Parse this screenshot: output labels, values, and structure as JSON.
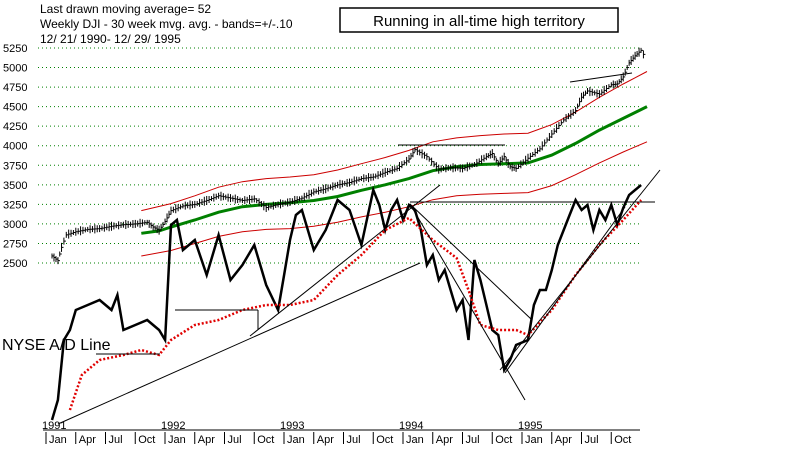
{
  "chart_data": {
    "type": "line",
    "header": [
      "Last drawn moving average= 52",
      "Weekly DJI - 30 week mvg. avg. - bands=+/-.10",
      "12/ 21/ 1990- 12/ 29/ 1995"
    ],
    "annotation": "Running in all-time high territory",
    "ad_line_label": "NYSE A/D Line",
    "y_ticks": [
      2500,
      2750,
      3000,
      3250,
      3500,
      3750,
      4000,
      4250,
      4500,
      4750,
      5000,
      5250
    ],
    "ylim": [
      2500,
      5250
    ],
    "grid": "horizontal dotted",
    "year_labels": [
      "1991",
      "1992",
      "1993",
      "1994",
      "1995"
    ],
    "month_labels": [
      "Jan",
      "Apr",
      "Jul",
      "Oct",
      "Jan",
      "Apr",
      "Jul",
      "Oct",
      "Jan",
      "Apr",
      "Jul",
      "Oct",
      "Jan",
      "Apr",
      "Jul",
      "Oct",
      "Jan",
      "Apr",
      "Jul",
      "Oct"
    ],
    "dji_weekly": [
      [
        1991.0,
        2590
      ],
      [
        1991.05,
        2530
      ],
      [
        1991.08,
        2700
      ],
      [
        1991.12,
        2860
      ],
      [
        1991.2,
        2900
      ],
      [
        1991.3,
        2930
      ],
      [
        1991.4,
        2940
      ],
      [
        1991.5,
        2970
      ],
      [
        1991.6,
        2990
      ],
      [
        1991.7,
        3000
      ],
      [
        1991.8,
        3020
      ],
      [
        1991.85,
        2960
      ],
      [
        1991.9,
        2920
      ],
      [
        1991.95,
        3030
      ],
      [
        1992.0,
        3170
      ],
      [
        1992.1,
        3230
      ],
      [
        1992.2,
        3250
      ],
      [
        1992.3,
        3300
      ],
      [
        1992.4,
        3360
      ],
      [
        1992.5,
        3330
      ],
      [
        1992.6,
        3300
      ],
      [
        1992.7,
        3320
      ],
      [
        1992.8,
        3210
      ],
      [
        1992.9,
        3250
      ],
      [
        1993.0,
        3280
      ],
      [
        1993.1,
        3330
      ],
      [
        1993.2,
        3410
      ],
      [
        1993.3,
        3450
      ],
      [
        1993.4,
        3500
      ],
      [
        1993.5,
        3530
      ],
      [
        1993.6,
        3580
      ],
      [
        1993.7,
        3600
      ],
      [
        1993.8,
        3660
      ],
      [
        1993.9,
        3710
      ],
      [
        1994.0,
        3830
      ],
      [
        1994.05,
        3950
      ],
      [
        1994.15,
        3860
      ],
      [
        1994.25,
        3700
      ],
      [
        1994.35,
        3720
      ],
      [
        1994.45,
        3710
      ],
      [
        1994.55,
        3760
      ],
      [
        1994.65,
        3860
      ],
      [
        1994.7,
        3900
      ],
      [
        1994.75,
        3770
      ],
      [
        1994.8,
        3860
      ],
      [
        1994.85,
        3730
      ],
      [
        1994.9,
        3710
      ],
      [
        1995.0,
        3840
      ],
      [
        1995.1,
        3960
      ],
      [
        1995.2,
        4150
      ],
      [
        1995.3,
        4330
      ],
      [
        1995.4,
        4450
      ],
      [
        1995.45,
        4620
      ],
      [
        1995.5,
        4700
      ],
      [
        1995.6,
        4660
      ],
      [
        1995.7,
        4780
      ],
      [
        1995.75,
        4790
      ],
      [
        1995.8,
        4880
      ],
      [
        1995.85,
        5060
      ],
      [
        1995.9,
        5150
      ],
      [
        1995.95,
        5220
      ],
      [
        1995.99,
        5117
      ]
    ],
    "ma_30wk": [
      [
        1991.75,
        2880
      ],
      [
        1991.9,
        2910
      ],
      [
        1992.0,
        2960
      ],
      [
        1992.2,
        3050
      ],
      [
        1992.4,
        3150
      ],
      [
        1992.6,
        3220
      ],
      [
        1992.8,
        3250
      ],
      [
        1993.0,
        3270
      ],
      [
        1993.2,
        3300
      ],
      [
        1993.4,
        3350
      ],
      [
        1993.6,
        3430
      ],
      [
        1993.8,
        3500
      ],
      [
        1994.0,
        3580
      ],
      [
        1994.2,
        3680
      ],
      [
        1994.4,
        3730
      ],
      [
        1994.6,
        3760
      ],
      [
        1994.8,
        3770
      ],
      [
        1995.0,
        3780
      ],
      [
        1995.2,
        3880
      ],
      [
        1995.4,
        4030
      ],
      [
        1995.6,
        4200
      ],
      [
        1995.8,
        4350
      ],
      [
        1996.0,
        4500
      ]
    ],
    "upper_band": [
      [
        1991.75,
        3170
      ],
      [
        1992.0,
        3260
      ],
      [
        1992.2,
        3360
      ],
      [
        1992.4,
        3470
      ],
      [
        1992.6,
        3540
      ],
      [
        1992.8,
        3580
      ],
      [
        1993.0,
        3600
      ],
      [
        1993.2,
        3630
      ],
      [
        1993.4,
        3690
      ],
      [
        1993.6,
        3770
      ],
      [
        1993.8,
        3850
      ],
      [
        1994.0,
        3940
      ],
      [
        1994.2,
        4050
      ],
      [
        1994.4,
        4100
      ],
      [
        1994.6,
        4130
      ],
      [
        1994.8,
        4150
      ],
      [
        1995.0,
        4160
      ],
      [
        1995.2,
        4270
      ],
      [
        1995.4,
        4430
      ],
      [
        1995.6,
        4620
      ],
      [
        1995.8,
        4790
      ],
      [
        1996.0,
        4950
      ]
    ],
    "lower_band": [
      [
        1991.75,
        2590
      ],
      [
        1992.0,
        2660
      ],
      [
        1992.2,
        2750
      ],
      [
        1992.4,
        2840
      ],
      [
        1992.6,
        2900
      ],
      [
        1992.8,
        2930
      ],
      [
        1993.0,
        2940
      ],
      [
        1993.2,
        2970
      ],
      [
        1993.4,
        3020
      ],
      [
        1993.6,
        3090
      ],
      [
        1993.8,
        3150
      ],
      [
        1994.0,
        3220
      ],
      [
        1994.2,
        3310
      ],
      [
        1994.4,
        3360
      ],
      [
        1994.6,
        3380
      ],
      [
        1994.8,
        3390
      ],
      [
        1995.0,
        3400
      ],
      [
        1995.2,
        3490
      ],
      [
        1995.4,
        3630
      ],
      [
        1995.6,
        3780
      ],
      [
        1995.8,
        3920
      ],
      [
        1996.0,
        4050
      ]
    ],
    "ad_line": [
      [
        1991.0,
        420
      ],
      [
        1991.05,
        400
      ],
      [
        1991.1,
        340
      ],
      [
        1991.15,
        330
      ],
      [
        1991.2,
        310
      ],
      [
        1991.3,
        305
      ],
      [
        1991.4,
        300
      ],
      [
        1991.5,
        310
      ],
      [
        1991.55,
        295
      ],
      [
        1991.6,
        330
      ],
      [
        1991.7,
        325
      ],
      [
        1991.8,
        320
      ],
      [
        1991.9,
        330
      ],
      [
        1991.95,
        340
      ],
      [
        1992.0,
        225
      ],
      [
        1992.05,
        220
      ],
      [
        1992.1,
        250
      ],
      [
        1992.2,
        240
      ],
      [
        1992.3,
        275
      ],
      [
        1992.4,
        235
      ],
      [
        1992.5,
        280
      ],
      [
        1992.6,
        265
      ],
      [
        1992.7,
        245
      ],
      [
        1992.8,
        285
      ],
      [
        1992.9,
        310
      ],
      [
        1992.95,
        275
      ],
      [
        1993.0,
        240
      ],
      [
        1993.05,
        215
      ],
      [
        1993.1,
        210
      ],
      [
        1993.2,
        250
      ],
      [
        1993.3,
        230
      ],
      [
        1993.4,
        200
      ],
      [
        1993.5,
        210
      ],
      [
        1993.6,
        245
      ],
      [
        1993.7,
        190
      ],
      [
        1993.75,
        205
      ],
      [
        1993.8,
        230
      ],
      [
        1993.85,
        210
      ],
      [
        1993.9,
        200
      ],
      [
        1993.95,
        220
      ],
      [
        1994.0,
        205
      ],
      [
        1994.05,
        210
      ],
      [
        1994.1,
        230
      ],
      [
        1994.15,
        265
      ],
      [
        1994.2,
        255
      ],
      [
        1994.25,
        280
      ],
      [
        1994.3,
        270
      ],
      [
        1994.35,
        290
      ],
      [
        1994.4,
        310
      ],
      [
        1994.45,
        300
      ],
      [
        1994.5,
        340
      ],
      [
        1994.55,
        260
      ],
      [
        1994.6,
        280
      ],
      [
        1994.65,
        305
      ],
      [
        1994.7,
        330
      ],
      [
        1994.75,
        335
      ],
      [
        1994.8,
        370
      ],
      [
        1994.85,
        360
      ],
      [
        1994.9,
        345
      ],
      [
        1995.0,
        340
      ],
      [
        1995.05,
        305
      ],
      [
        1995.1,
        290
      ],
      [
        1995.15,
        290
      ],
      [
        1995.2,
        270
      ],
      [
        1995.25,
        245
      ],
      [
        1995.3,
        230
      ],
      [
        1995.35,
        215
      ],
      [
        1995.4,
        200
      ],
      [
        1995.45,
        210
      ],
      [
        1995.5,
        205
      ],
      [
        1995.55,
        230
      ],
      [
        1995.6,
        210
      ],
      [
        1995.65,
        220
      ],
      [
        1995.7,
        205
      ],
      [
        1995.75,
        225
      ],
      [
        1995.8,
        208
      ],
      [
        1995.85,
        195
      ],
      [
        1995.9,
        190
      ],
      [
        1995.95,
        185
      ]
    ],
    "ad_ma": [
      [
        1991.15,
        410
      ],
      [
        1991.25,
        375
      ],
      [
        1991.4,
        360
      ],
      [
        1991.6,
        355
      ],
      [
        1991.75,
        350
      ],
      [
        1991.9,
        355
      ],
      [
        1992.0,
        340
      ],
      [
        1992.2,
        325
      ],
      [
        1992.4,
        320
      ],
      [
        1992.6,
        310
      ],
      [
        1992.8,
        305
      ],
      [
        1993.0,
        305
      ],
      [
        1993.2,
        300
      ],
      [
        1993.4,
        275
      ],
      [
        1993.6,
        255
      ],
      [
        1993.8,
        230
      ],
      [
        1994.0,
        218
      ],
      [
        1994.2,
        240
      ],
      [
        1994.4,
        258
      ],
      [
        1994.5,
        290
      ],
      [
        1994.6,
        325
      ],
      [
        1994.75,
        330
      ],
      [
        1994.9,
        330
      ],
      [
        1995.0,
        335
      ],
      [
        1995.2,
        310
      ],
      [
        1995.4,
        275
      ],
      [
        1995.6,
        245
      ],
      [
        1995.8,
        220
      ],
      [
        1995.95,
        200
      ]
    ]
  }
}
